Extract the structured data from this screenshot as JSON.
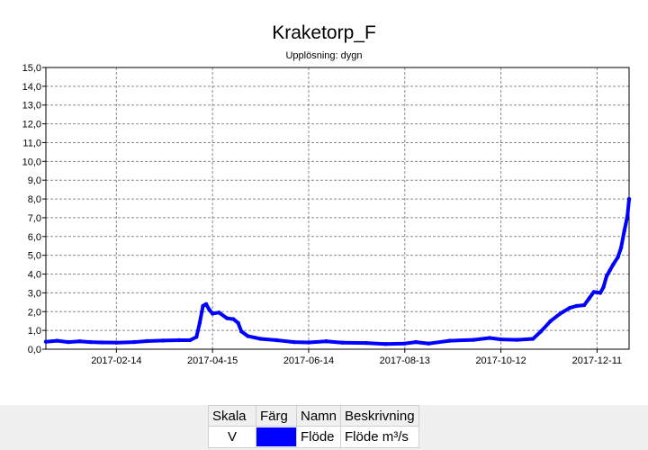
{
  "chart_data": {
    "type": "line",
    "title": "Kraketorp_F",
    "subtitle": "Upplösning: dygn",
    "xlabel": "",
    "ylabel": "",
    "x_range": [
      "2017-01-01",
      "2017-12-31"
    ],
    "ylim": [
      0,
      15
    ],
    "y_ticks": [
      "0,0",
      "1,0",
      "2,0",
      "3,0",
      "4,0",
      "5,0",
      "6,0",
      "7,0",
      "8,0",
      "9,0",
      "10,0",
      "11,0",
      "12,0",
      "13,0",
      "14,0",
      "15,0"
    ],
    "x_ticks": [
      "2017-02-14",
      "2017-04-15",
      "2017-06-14",
      "2017-08-13",
      "2017-10-12",
      "2017-12-11"
    ],
    "grid": true,
    "series": [
      {
        "name": "Flöde",
        "color": "#0000ff",
        "points": [
          [
            "2017-01-01",
            0.4
          ],
          [
            "2017-01-08",
            0.45
          ],
          [
            "2017-01-15",
            0.38
          ],
          [
            "2017-01-22",
            0.42
          ],
          [
            "2017-01-29",
            0.38
          ],
          [
            "2017-02-05",
            0.36
          ],
          [
            "2017-02-14",
            0.35
          ],
          [
            "2017-02-25",
            0.38
          ],
          [
            "2017-03-05",
            0.43
          ],
          [
            "2017-03-15",
            0.46
          ],
          [
            "2017-03-25",
            0.48
          ],
          [
            "2017-04-01",
            0.48
          ],
          [
            "2017-04-05",
            0.65
          ],
          [
            "2017-04-07",
            1.4
          ],
          [
            "2017-04-09",
            2.3
          ],
          [
            "2017-04-11",
            2.4
          ],
          [
            "2017-04-13",
            2.1
          ],
          [
            "2017-04-15",
            1.9
          ],
          [
            "2017-04-19",
            1.95
          ],
          [
            "2017-04-24",
            1.65
          ],
          [
            "2017-04-28",
            1.6
          ],
          [
            "2017-05-01",
            1.4
          ],
          [
            "2017-05-03",
            0.95
          ],
          [
            "2017-05-07",
            0.7
          ],
          [
            "2017-05-15",
            0.55
          ],
          [
            "2017-05-25",
            0.48
          ],
          [
            "2017-06-05",
            0.38
          ],
          [
            "2017-06-14",
            0.36
          ],
          [
            "2017-06-25",
            0.42
          ],
          [
            "2017-07-05",
            0.35
          ],
          [
            "2017-07-20",
            0.33
          ],
          [
            "2017-08-01",
            0.28
          ],
          [
            "2017-08-13",
            0.3
          ],
          [
            "2017-08-20",
            0.38
          ],
          [
            "2017-08-28",
            0.3
          ],
          [
            "2017-09-10",
            0.45
          ],
          [
            "2017-09-25",
            0.5
          ],
          [
            "2017-10-05",
            0.6
          ],
          [
            "2017-10-12",
            0.52
          ],
          [
            "2017-10-22",
            0.5
          ],
          [
            "2017-11-01",
            0.55
          ],
          [
            "2017-11-06",
            0.95
          ],
          [
            "2017-11-12",
            1.5
          ],
          [
            "2017-11-18",
            1.9
          ],
          [
            "2017-11-24",
            2.2
          ],
          [
            "2017-11-28",
            2.3
          ],
          [
            "2017-12-03",
            2.35
          ],
          [
            "2017-12-06",
            2.7
          ],
          [
            "2017-12-09",
            3.05
          ],
          [
            "2017-12-13",
            3.0
          ],
          [
            "2017-12-15",
            3.3
          ],
          [
            "2017-12-17",
            3.9
          ],
          [
            "2017-12-19",
            4.2
          ],
          [
            "2017-12-21",
            4.5
          ],
          [
            "2017-12-24",
            4.9
          ],
          [
            "2017-12-26",
            5.4
          ],
          [
            "2017-12-28",
            6.3
          ],
          [
            "2017-12-30",
            7.1
          ],
          [
            "2017-12-31",
            8.0
          ]
        ]
      }
    ]
  },
  "legend": {
    "headers": [
      "Skala",
      "Färg",
      "Namn",
      "Beskrivning"
    ],
    "rows": [
      {
        "scale": "V",
        "color": "#0000ff",
        "name": "Flöde",
        "description": "Flöde m³/s"
      }
    ]
  }
}
